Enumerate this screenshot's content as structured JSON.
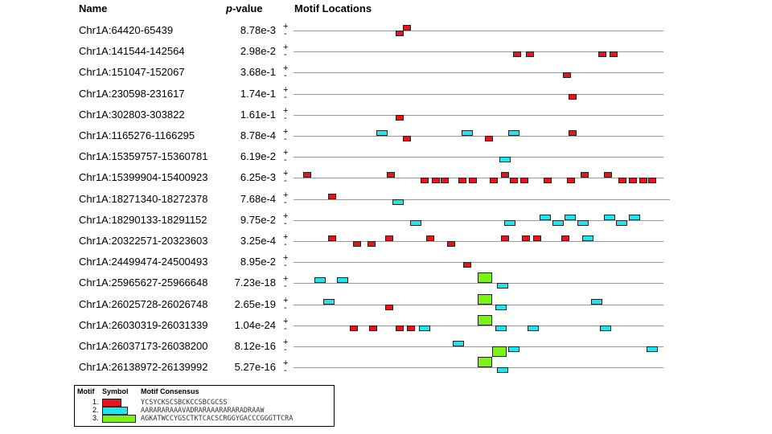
{
  "headers": {
    "name": "Name",
    "pvalue_italic": "p",
    "pvalue_rest": "-value",
    "locations": "Motif Locations"
  },
  "strand": {
    "plus": "+",
    "minus": "-"
  },
  "motif_colors": {
    "1": "#e8131b",
    "2": "#1ee6f0",
    "3": "#7df215"
  },
  "rows": [
    {
      "name": "Chr1A:64420-65439",
      "pvalue": "8.78e-3",
      "sites": [
        {
          "motif": 1,
          "strand": "-",
          "pos": 0.27
        },
        {
          "motif": 1,
          "strand": "+",
          "pos": 0.29
        }
      ]
    },
    {
      "name": "Chr1A:141544-142564",
      "pvalue": "2.98e-2",
      "sites": [
        {
          "motif": 1,
          "strand": "-",
          "pos": 0.6
        },
        {
          "motif": 1,
          "strand": "-",
          "pos": 0.635
        },
        {
          "motif": 1,
          "strand": "-",
          "pos": 0.84
        },
        {
          "motif": 1,
          "strand": "-",
          "pos": 0.87
        }
      ]
    },
    {
      "name": "Chr1A:151047-152067",
      "pvalue": "3.68e-1",
      "sites": [
        {
          "motif": 1,
          "strand": "-",
          "pos": 0.74
        }
      ]
    },
    {
      "name": "Chr1A:230598-231617",
      "pvalue": "1.74e-1",
      "sites": [
        {
          "motif": 1,
          "strand": "-",
          "pos": 0.755
        }
      ]
    },
    {
      "name": "Chr1A:302803-303822",
      "pvalue": "1.61e-1",
      "sites": [
        {
          "motif": 1,
          "strand": "-",
          "pos": 0.27
        }
      ]
    },
    {
      "name": "Chr1A:1165276-1166295",
      "pvalue": "8.78e-4",
      "sites": [
        {
          "motif": 2,
          "strand": "+",
          "pos": 0.215
        },
        {
          "motif": 1,
          "strand": "-",
          "pos": 0.29
        },
        {
          "motif": 2,
          "strand": "+",
          "pos": 0.455
        },
        {
          "motif": 1,
          "strand": "-",
          "pos": 0.52
        },
        {
          "motif": 2,
          "strand": "+",
          "pos": 0.585
        },
        {
          "motif": 1,
          "strand": "+",
          "pos": 0.755
        }
      ]
    },
    {
      "name": "Chr1A:15359757-15360781",
      "pvalue": "6.19e-2",
      "sites": [
        {
          "motif": 2,
          "strand": "-",
          "pos": 0.56
        }
      ]
    },
    {
      "name": "Chr1A:15399904-15400923",
      "pvalue": "6.25e-3",
      "sites": [
        {
          "motif": 1,
          "strand": "+",
          "pos": 0.01
        },
        {
          "motif": 1,
          "strand": "+",
          "pos": 0.245
        },
        {
          "motif": 1,
          "strand": "-",
          "pos": 0.34
        },
        {
          "motif": 1,
          "strand": "-",
          "pos": 0.37
        },
        {
          "motif": 1,
          "strand": "-",
          "pos": 0.395
        },
        {
          "motif": 1,
          "strand": "-",
          "pos": 0.445
        },
        {
          "motif": 1,
          "strand": "-",
          "pos": 0.475
        },
        {
          "motif": 1,
          "strand": "-",
          "pos": 0.535
        },
        {
          "motif": 1,
          "strand": "+",
          "pos": 0.565
        },
        {
          "motif": 1,
          "strand": "-",
          "pos": 0.59
        },
        {
          "motif": 1,
          "strand": "-",
          "pos": 0.62
        },
        {
          "motif": 1,
          "strand": "-",
          "pos": 0.685
        },
        {
          "motif": 1,
          "strand": "-",
          "pos": 0.75
        },
        {
          "motif": 1,
          "strand": "+",
          "pos": 0.79
        },
        {
          "motif": 1,
          "strand": "+",
          "pos": 0.855
        },
        {
          "motif": 1,
          "strand": "-",
          "pos": 0.895
        },
        {
          "motif": 1,
          "strand": "-",
          "pos": 0.925
        },
        {
          "motif": 1,
          "strand": "-",
          "pos": 0.955
        },
        {
          "motif": 1,
          "strand": "-",
          "pos": 0.98
        }
      ]
    },
    {
      "name": "Chr1A:18271340-18272378",
      "pvalue": "7.68e-4",
      "sites": [
        {
          "motif": 1,
          "strand": "+",
          "pos": 0.08
        },
        {
          "motif": 2,
          "strand": "-",
          "pos": 0.26
        }
      ]
    },
    {
      "name": "Chr1A:18290133-18291152",
      "pvalue": "9.75e-2",
      "sites": [
        {
          "motif": 2,
          "strand": "-",
          "pos": 0.31
        },
        {
          "motif": 2,
          "strand": "-",
          "pos": 0.575
        },
        {
          "motif": 2,
          "strand": "+",
          "pos": 0.675
        },
        {
          "motif": 2,
          "strand": "-",
          "pos": 0.71
        },
        {
          "motif": 2,
          "strand": "+",
          "pos": 0.745
        },
        {
          "motif": 2,
          "strand": "-",
          "pos": 0.78
        },
        {
          "motif": 2,
          "strand": "+",
          "pos": 0.855
        },
        {
          "motif": 2,
          "strand": "-",
          "pos": 0.89
        },
        {
          "motif": 2,
          "strand": "+",
          "pos": 0.925
        }
      ]
    },
    {
      "name": "Chr1A:20322571-20323603",
      "pvalue": "3.25e-4",
      "sites": [
        {
          "motif": 1,
          "strand": "+",
          "pos": 0.08
        },
        {
          "motif": 1,
          "strand": "-",
          "pos": 0.15
        },
        {
          "motif": 1,
          "strand": "-",
          "pos": 0.19
        },
        {
          "motif": 1,
          "strand": "+",
          "pos": 0.24
        },
        {
          "motif": 1,
          "strand": "+",
          "pos": 0.355
        },
        {
          "motif": 1,
          "strand": "-",
          "pos": 0.415
        },
        {
          "motif": 1,
          "strand": "+",
          "pos": 0.565
        },
        {
          "motif": 1,
          "strand": "+",
          "pos": 0.625
        },
        {
          "motif": 1,
          "strand": "+",
          "pos": 0.655
        },
        {
          "motif": 1,
          "strand": "+",
          "pos": 0.735
        },
        {
          "motif": 2,
          "strand": "+",
          "pos": 0.795
        }
      ]
    },
    {
      "name": "Chr1A:24499474-24500493",
      "pvalue": "8.95e-2",
      "sites": [
        {
          "motif": 1,
          "strand": "-",
          "pos": 0.46
        }
      ]
    },
    {
      "name": "Chr1A:25965627-25966648",
      "pvalue": "7.23e-18",
      "sites": [
        {
          "motif": 2,
          "strand": "+",
          "pos": 0.04
        },
        {
          "motif": 2,
          "strand": "+",
          "pos": 0.105
        },
        {
          "motif": 3,
          "strand": "+",
          "pos": 0.5
        },
        {
          "motif": 2,
          "strand": "-",
          "pos": 0.555
        }
      ]
    },
    {
      "name": "Chr1A:26025728-26026748",
      "pvalue": "2.65e-19",
      "sites": [
        {
          "motif": 2,
          "strand": "+",
          "pos": 0.065
        },
        {
          "motif": 1,
          "strand": "-",
          "pos": 0.24
        },
        {
          "motif": 3,
          "strand": "+",
          "pos": 0.5
        },
        {
          "motif": 2,
          "strand": "-",
          "pos": 0.55
        },
        {
          "motif": 2,
          "strand": "+",
          "pos": 0.82
        }
      ]
    },
    {
      "name": "Chr1A:26030319-26031339",
      "pvalue": "1.04e-24",
      "sites": [
        {
          "motif": 1,
          "strand": "-",
          "pos": 0.14
        },
        {
          "motif": 1,
          "strand": "-",
          "pos": 0.195
        },
        {
          "motif": 1,
          "strand": "-",
          "pos": 0.27
        },
        {
          "motif": 1,
          "strand": "-",
          "pos": 0.3
        },
        {
          "motif": 2,
          "strand": "-",
          "pos": 0.335
        },
        {
          "motif": 3,
          "strand": "+",
          "pos": 0.5
        },
        {
          "motif": 2,
          "strand": "-",
          "pos": 0.55
        },
        {
          "motif": 2,
          "strand": "-",
          "pos": 0.64
        },
        {
          "motif": 2,
          "strand": "-",
          "pos": 0.845
        }
      ]
    },
    {
      "name": "Chr1A:26037173-26038200",
      "pvalue": "8.12e-16",
      "sites": [
        {
          "motif": 2,
          "strand": "+",
          "pos": 0.43
        },
        {
          "motif": 3,
          "strand": "-",
          "pos": 0.54
        },
        {
          "motif": 2,
          "strand": "-",
          "pos": 0.585
        },
        {
          "motif": 2,
          "strand": "-",
          "pos": 0.975
        }
      ]
    },
    {
      "name": "Chr1A:26138972-26139992",
      "pvalue": "5.27e-16",
      "sites": [
        {
          "motif": 3,
          "strand": "+",
          "pos": 0.5
        },
        {
          "motif": 2,
          "strand": "-",
          "pos": 0.555
        }
      ]
    }
  ],
  "legend": {
    "headers": {
      "motif": "Motif",
      "symbol": "Symbol",
      "consensus": "Motif Consensus"
    },
    "items": [
      {
        "number": "1.",
        "motif": 1,
        "consensus": "YCSYCKSCSBCKCCSBCGCSS"
      },
      {
        "number": "2.",
        "motif": 2,
        "consensus": "AARARARAAAVADRARAAARARARADRAAW"
      },
      {
        "number": "3.",
        "motif": 3,
        "consensus": "AGKATWCCYGSCTKTCACSCRGGYGACCCGGGTTCRA"
      }
    ]
  }
}
